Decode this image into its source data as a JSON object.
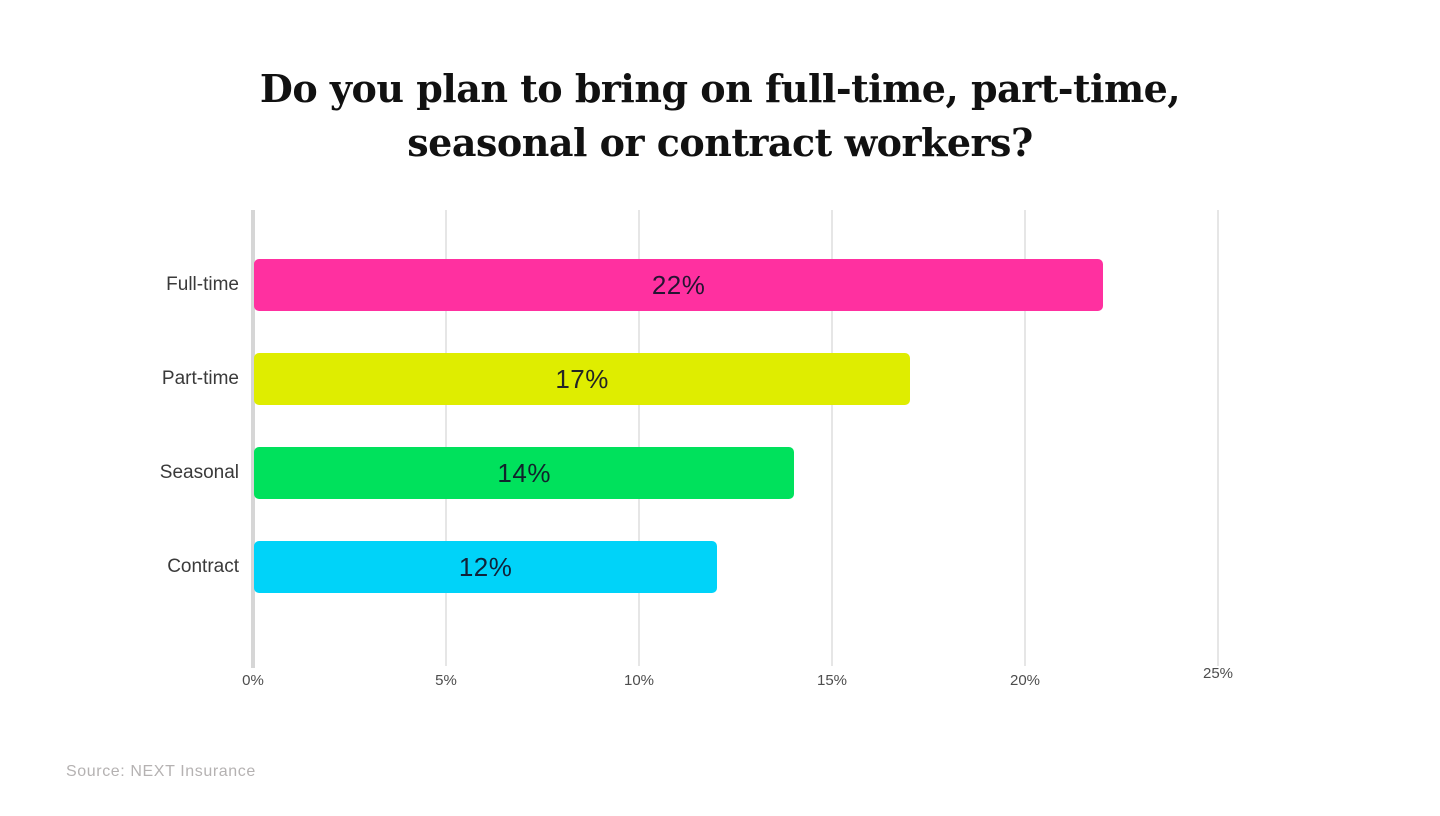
{
  "title": {
    "line1": "Do you plan to bring on full-time, part-time,",
    "line2": "seasonal or contract workers?"
  },
  "source": "Source: NEXT Insurance",
  "colors": {
    "background": "#ffffff",
    "title_text": "#111111",
    "gridline": "#e6e6e6",
    "axis_line": "#d6d6d6",
    "category_label": "#3a3a3a",
    "tick_label": "#4d4d4d",
    "value_label": "#121228",
    "source_text": "#b5b2b2"
  },
  "chart_data": {
    "type": "bar",
    "orientation": "horizontal",
    "title": "Do you plan to bring on full-time, part-time, seasonal or contract workers?",
    "categories": [
      "Full-time",
      "Part-time",
      "Seasonal",
      "Contract"
    ],
    "values": [
      22,
      17,
      14,
      12
    ],
    "value_labels": [
      "22%",
      "17%",
      "14%",
      "12%"
    ],
    "bar_colors": [
      "#FF30A0",
      "#DFED00",
      "#00E15C",
      "#00D3F9"
    ],
    "xlabel": "",
    "ylabel": "",
    "xlim": [
      0,
      25
    ],
    "x_ticks": [
      0,
      5,
      10,
      15,
      20,
      25
    ],
    "x_tick_labels": [
      "0%",
      "5%",
      "10%",
      "15%",
      "20%",
      "25%"
    ],
    "grid": true,
    "value_label_position": "center-of-bar",
    "legend": "none",
    "source": "Source: NEXT Insurance"
  }
}
